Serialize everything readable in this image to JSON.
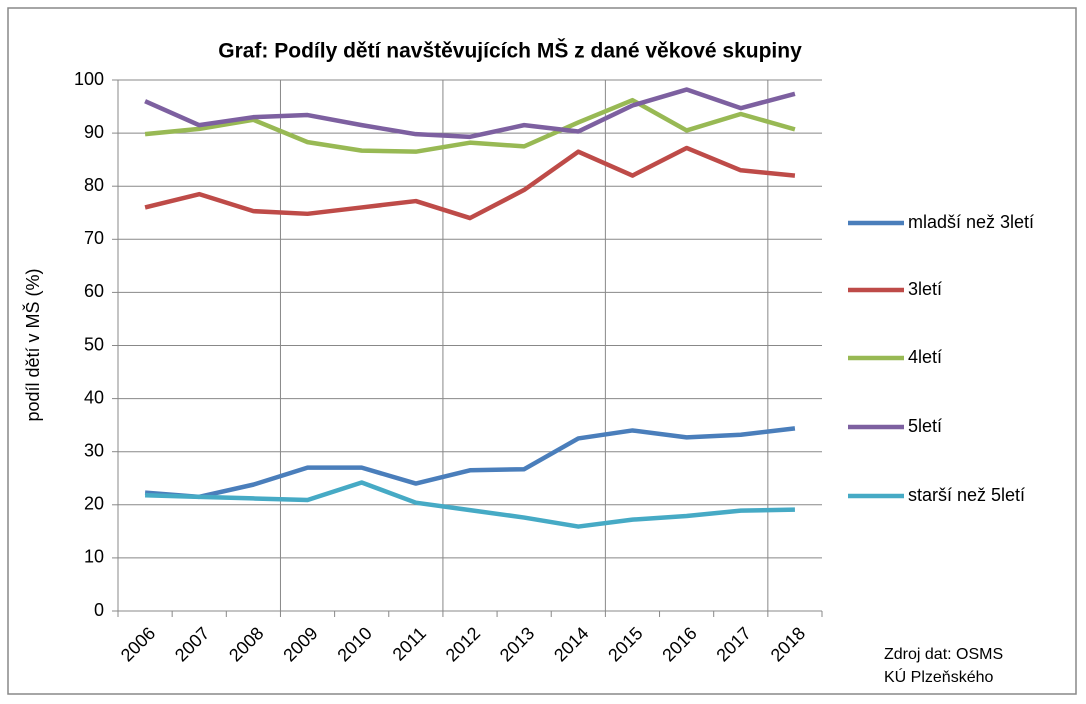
{
  "chart_data": {
    "type": "line",
    "title": "Graf: Podíly dětí navštěvujících MŠ z dané věkové skupiny",
    "y_label": "podíl dětí v MŠ (%)",
    "annotations": [
      "Zdroj dat: OSMS",
      "KÚ Plzeňského"
    ],
    "categories": [
      "2006",
      "2007",
      "2008",
      "2009",
      "2010",
      "2011",
      "2012",
      "2013",
      "2014",
      "2015",
      "2016",
      "2017",
      "2018"
    ],
    "series": [
      {
        "name": "mladší než 3letí",
        "color": "#4a7ebb",
        "values": [
          22.3,
          21.5,
          23.8,
          27,
          27,
          24,
          26.5,
          26.7,
          32.5,
          34,
          32.7,
          33.2,
          34.4
        ]
      },
      {
        "name": "3letí",
        "color": "#be4b48",
        "values": [
          76,
          78.5,
          75.3,
          74.8,
          76,
          77.2,
          74,
          79.3,
          86.5,
          82,
          87.2,
          83,
          82
        ]
      },
      {
        "name": "4letí",
        "color": "#98b954",
        "values": [
          89.8,
          90.8,
          92.5,
          88.3,
          86.7,
          86.5,
          88.2,
          87.5,
          92,
          96.2,
          90.5,
          93.6,
          90.7
        ]
      },
      {
        "name": "5letí",
        "color": "#7d60a0",
        "values": [
          96,
          91.5,
          93,
          93.4,
          91.5,
          89.8,
          89.3,
          91.5,
          90.3,
          95.2,
          98.2,
          94.7,
          97.4
        ]
      },
      {
        "name": "starší než 5letí",
        "color": "#46aac5",
        "values": [
          21.8,
          21.5,
          21.2,
          20.9,
          24.2,
          20.4,
          19,
          17.6,
          15.9,
          17.2,
          17.9,
          18.9,
          19.1
        ]
      }
    ],
    "ylim": [
      0,
      100
    ],
    "yticks": [
      0,
      10,
      20,
      30,
      40,
      50,
      60,
      70,
      80,
      90,
      100
    ],
    "grid": true,
    "legend": "right"
  }
}
